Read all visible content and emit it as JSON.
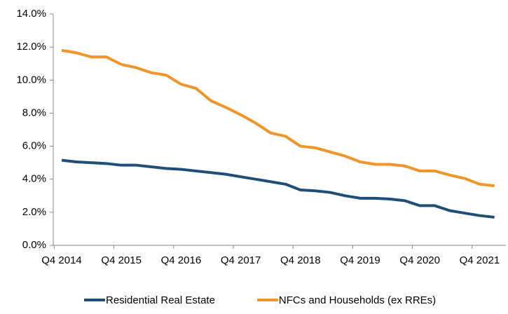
{
  "chart_data": {
    "type": "line",
    "categories": [
      "Q4 2014",
      null,
      null,
      null,
      "Q4 2015",
      null,
      null,
      null,
      "Q4 2016",
      null,
      null,
      null,
      "Q4 2017",
      null,
      null,
      null,
      "Q4 2018",
      null,
      null,
      null,
      "Q4 2019",
      null,
      null,
      null,
      "Q4 2020",
      null,
      null,
      null,
      "Q4 2021",
      null
    ],
    "series": [
      {
        "name": "Residential Real Estate",
        "color": "#1f4e79",
        "values": [
          5.15,
          5.05,
          5.0,
          4.95,
          4.85,
          4.85,
          4.75,
          4.65,
          4.6,
          4.5,
          4.4,
          4.3,
          4.15,
          4.0,
          3.85,
          3.7,
          3.35,
          3.3,
          3.2,
          3.0,
          2.85,
          2.85,
          2.8,
          2.7,
          2.4,
          2.4,
          2.1,
          1.95,
          1.8,
          1.7
        ]
      },
      {
        "name": "NFCs and Households (ex RREs)",
        "color": "#f0952a",
        "values": [
          11.8,
          11.65,
          11.4,
          11.4,
          10.95,
          10.75,
          10.45,
          10.3,
          9.75,
          9.5,
          8.75,
          8.35,
          7.9,
          7.4,
          6.8,
          6.6,
          6.0,
          5.9,
          5.65,
          5.4,
          5.05,
          4.9,
          4.9,
          4.8,
          4.5,
          4.5,
          4.25,
          4.05,
          3.7,
          3.6
        ]
      }
    ],
    "ylim": [
      0,
      14
    ],
    "yticks": [
      {
        "value": 0,
        "label": "0.0%"
      },
      {
        "value": 2,
        "label": "2.0%"
      },
      {
        "value": 4,
        "label": "4.0%"
      },
      {
        "value": 6,
        "label": "6.0%"
      },
      {
        "value": 8,
        "label": "8.0%"
      },
      {
        "value": 10,
        "label": "10.0%"
      },
      {
        "value": 12,
        "label": "12.0%"
      },
      {
        "value": 14,
        "label": "14.0%"
      }
    ],
    "grid": false,
    "legend": "bottom"
  }
}
